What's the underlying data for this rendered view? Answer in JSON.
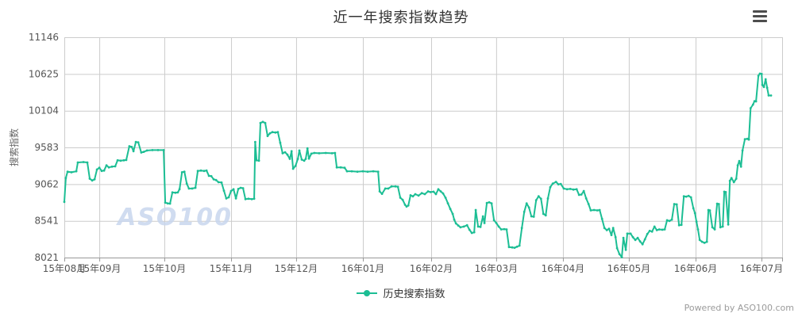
{
  "header": {
    "title": "近一年搜索指数趋势"
  },
  "footer": {
    "powered_by": "Powered by ASO100.com"
  },
  "watermark": "ASO100",
  "colors": {
    "line": "#1cbe94",
    "grid": "#cccccc",
    "axis": "#999999",
    "label": "#555555",
    "axis_name": "#666666",
    "title": "#333333",
    "watermark": "#c8d6ee",
    "menu": "#4d4d4d"
  },
  "chart_data": {
    "type": "line",
    "title": "近一年搜索指数趋势",
    "xlabel": "",
    "ylabel": "搜索指数",
    "ylim": [
      8021,
      11146
    ],
    "y_ticks": [
      11146,
      10625,
      10104,
      9583,
      9062,
      8541,
      8021
    ],
    "grid": true,
    "legend_position": "bottom",
    "x_ticks": [
      {
        "label": "15年08月",
        "day": 0
      },
      {
        "label": "15年09月",
        "day": 16.1
      },
      {
        "label": "15年10月",
        "day": 46.0
      },
      {
        "label": "15年11月",
        "day": 76.7
      },
      {
        "label": "15年12月",
        "day": 106.6
      },
      {
        "label": "16年01月",
        "day": 137.3
      },
      {
        "label": "16年02月",
        "day": 168.7
      },
      {
        "label": "16年03月",
        "day": 198.6
      },
      {
        "label": "16年04月",
        "day": 229.3
      },
      {
        "label": "16年05月",
        "day": 259.6
      },
      {
        "label": "16年06月",
        "day": 290.3
      },
      {
        "label": "16年07月",
        "day": 320.6
      }
    ],
    "total_days": 325,
    "series": [
      {
        "name": "历史搜索指数",
        "points": [
          [
            0,
            8810
          ],
          [
            0.7,
            9150
          ],
          [
            1.5,
            9240
          ],
          [
            3.3,
            9230
          ],
          [
            5.5,
            9245
          ],
          [
            6.2,
            9370
          ],
          [
            8.8,
            9375
          ],
          [
            10.6,
            9370
          ],
          [
            11.7,
            9140
          ],
          [
            12.8,
            9115
          ],
          [
            13.9,
            9130
          ],
          [
            15,
            9270
          ],
          [
            16.1,
            9295
          ],
          [
            17.2,
            9250
          ],
          [
            18.3,
            9255
          ],
          [
            19.4,
            9330
          ],
          [
            20.5,
            9300
          ],
          [
            21.9,
            9310
          ],
          [
            23.4,
            9315
          ],
          [
            24.5,
            9400
          ],
          [
            25.9,
            9395
          ],
          [
            27.4,
            9400
          ],
          [
            28.5,
            9405
          ],
          [
            29.9,
            9600
          ],
          [
            31,
            9590
          ],
          [
            31.8,
            9530
          ],
          [
            32.9,
            9660
          ],
          [
            34,
            9655
          ],
          [
            35.4,
            9510
          ],
          [
            36.5,
            9520
          ],
          [
            38,
            9540
          ],
          [
            40.5,
            9545
          ],
          [
            43.1,
            9545
          ],
          [
            45.7,
            9545
          ],
          [
            46.4,
            8800
          ],
          [
            47.5,
            8790
          ],
          [
            48.6,
            8785
          ],
          [
            49.7,
            8945
          ],
          [
            51.1,
            8940
          ],
          [
            52.2,
            8945
          ],
          [
            53,
            8990
          ],
          [
            54.1,
            9230
          ],
          [
            55.2,
            9240
          ],
          [
            56.3,
            9070
          ],
          [
            57.3,
            9000
          ],
          [
            58.8,
            9000
          ],
          [
            60.3,
            9010
          ],
          [
            61.4,
            9250
          ],
          [
            62.8,
            9255
          ],
          [
            64.3,
            9250
          ],
          [
            65.4,
            9255
          ],
          [
            66.5,
            9180
          ],
          [
            67.6,
            9175
          ],
          [
            68.7,
            9130
          ],
          [
            69.8,
            9120
          ],
          [
            70.9,
            9090
          ],
          [
            72.3,
            9085
          ],
          [
            73.4,
            8970
          ],
          [
            74.5,
            8860
          ],
          [
            75.6,
            8875
          ],
          [
            76.7,
            8965
          ],
          [
            77.8,
            8990
          ],
          [
            78.9,
            8860
          ],
          [
            80,
            8995
          ],
          [
            81.1,
            9010
          ],
          [
            82.2,
            9005
          ],
          [
            83.3,
            8850
          ],
          [
            84.7,
            8855
          ],
          [
            86.2,
            8850
          ],
          [
            87.3,
            8855
          ],
          [
            87.8,
            9660
          ],
          [
            88.4,
            9400
          ],
          [
            89.5,
            9395
          ],
          [
            90.2,
            9930
          ],
          [
            91.3,
            9945
          ],
          [
            92.4,
            9930
          ],
          [
            93.5,
            9745
          ],
          [
            94.6,
            9785
          ],
          [
            95.7,
            9800
          ],
          [
            97.1,
            9795
          ],
          [
            98.2,
            9800
          ],
          [
            99.3,
            9650
          ],
          [
            100.4,
            9500
          ],
          [
            101.5,
            9515
          ],
          [
            102.6,
            9480
          ],
          [
            103.7,
            9420
          ],
          [
            104.5,
            9530
          ],
          [
            105.2,
            9280
          ],
          [
            106.3,
            9320
          ],
          [
            107.4,
            9420
          ],
          [
            108.1,
            9540
          ],
          [
            109.2,
            9410
          ],
          [
            110.3,
            9395
          ],
          [
            111,
            9420
          ],
          [
            111.8,
            9570
          ],
          [
            112.5,
            9425
          ],
          [
            113.6,
            9495
          ],
          [
            115,
            9505
          ],
          [
            117.2,
            9500
          ],
          [
            120.2,
            9505
          ],
          [
            123.1,
            9500
          ],
          [
            124.5,
            9505
          ],
          [
            125.3,
            9300
          ],
          [
            127.1,
            9300
          ],
          [
            128.9,
            9295
          ],
          [
            130,
            9245
          ],
          [
            132.2,
            9245
          ],
          [
            134.8,
            9240
          ],
          [
            137.3,
            9245
          ],
          [
            139.5,
            9240
          ],
          [
            142.1,
            9245
          ],
          [
            144.3,
            9240
          ],
          [
            145,
            8960
          ],
          [
            146.1,
            8925
          ],
          [
            147.6,
            9000
          ],
          [
            149,
            9000
          ],
          [
            150.5,
            9030
          ],
          [
            152.3,
            9030
          ],
          [
            153.4,
            9025
          ],
          [
            154.5,
            8870
          ],
          [
            155.6,
            8840
          ],
          [
            156.7,
            8770
          ],
          [
            157.4,
            8745
          ],
          [
            158.2,
            8760
          ],
          [
            159.2,
            8905
          ],
          [
            160.3,
            8890
          ],
          [
            161.4,
            8920
          ],
          [
            162.9,
            8900
          ],
          [
            164.4,
            8935
          ],
          [
            165.8,
            8920
          ],
          [
            167.3,
            8960
          ],
          [
            168.4,
            8950
          ],
          [
            169.8,
            8955
          ],
          [
            170.9,
            8920
          ],
          [
            172,
            8990
          ],
          [
            173.1,
            8960
          ],
          [
            174.2,
            8930
          ],
          [
            175.3,
            8870
          ],
          [
            176.4,
            8790
          ],
          [
            177.5,
            8710
          ],
          [
            178.6,
            8640
          ],
          [
            179.3,
            8560
          ],
          [
            180.1,
            8505
          ],
          [
            181.2,
            8475
          ],
          [
            182.2,
            8450
          ],
          [
            183.7,
            8460
          ],
          [
            185.2,
            8480
          ],
          [
            186.3,
            8415
          ],
          [
            187.4,
            8370
          ],
          [
            188.5,
            8380
          ],
          [
            189.2,
            8695
          ],
          [
            190.3,
            8460
          ],
          [
            191.4,
            8455
          ],
          [
            192.5,
            8605
          ],
          [
            193.2,
            8510
          ],
          [
            194.3,
            8795
          ],
          [
            195.4,
            8805
          ],
          [
            196.5,
            8790
          ],
          [
            197.6,
            8550
          ],
          [
            198.7,
            8510
          ],
          [
            199.8,
            8460
          ],
          [
            200.9,
            8420
          ],
          [
            202.3,
            8425
          ],
          [
            203.4,
            8420
          ],
          [
            204.5,
            8170
          ],
          [
            206,
            8165
          ],
          [
            207.1,
            8160
          ],
          [
            208.2,
            8175
          ],
          [
            209.3,
            8190
          ],
          [
            210.4,
            8440
          ],
          [
            211.5,
            8670
          ],
          [
            212.6,
            8790
          ],
          [
            213.7,
            8730
          ],
          [
            214.8,
            8605
          ],
          [
            215.9,
            8600
          ],
          [
            217,
            8835
          ],
          [
            218.1,
            8890
          ],
          [
            219.2,
            8855
          ],
          [
            220.3,
            8640
          ],
          [
            221.4,
            8620
          ],
          [
            222.4,
            8860
          ],
          [
            223.5,
            9020
          ],
          [
            224.6,
            9070
          ],
          [
            226.1,
            9095
          ],
          [
            227.2,
            9060
          ],
          [
            228.3,
            9065
          ],
          [
            229.7,
            9000
          ],
          [
            231.2,
            8990
          ],
          [
            232.7,
            8995
          ],
          [
            234.1,
            8985
          ],
          [
            235.6,
            8990
          ],
          [
            236.7,
            8910
          ],
          [
            237.8,
            8915
          ],
          [
            238.9,
            8965
          ],
          [
            240,
            8860
          ],
          [
            241.1,
            8780
          ],
          [
            242.1,
            8690
          ],
          [
            243.6,
            8695
          ],
          [
            245.1,
            8690
          ],
          [
            246.2,
            8695
          ],
          [
            247.3,
            8570
          ],
          [
            248.4,
            8440
          ],
          [
            249.5,
            8410
          ],
          [
            250.5,
            8430
          ],
          [
            251.6,
            8340
          ],
          [
            252.4,
            8440
          ],
          [
            253.5,
            8310
          ],
          [
            254.2,
            8155
          ],
          [
            255.3,
            8070
          ],
          [
            256.4,
            8025
          ],
          [
            257.1,
            8300
          ],
          [
            258.2,
            8130
          ],
          [
            258.9,
            8360
          ],
          [
            260.4,
            8360
          ],
          [
            261.5,
            8310
          ],
          [
            262.6,
            8270
          ],
          [
            263.7,
            8300
          ],
          [
            264.8,
            8250
          ],
          [
            265.9,
            8210
          ],
          [
            267,
            8280
          ],
          [
            268.1,
            8355
          ],
          [
            269.2,
            8400
          ],
          [
            270.3,
            8390
          ],
          [
            271.4,
            8460
          ],
          [
            272.5,
            8410
          ],
          [
            273.6,
            8420
          ],
          [
            275,
            8415
          ],
          [
            276.1,
            8420
          ],
          [
            277.2,
            8550
          ],
          [
            278.3,
            8540
          ],
          [
            279.4,
            8560
          ],
          [
            280.5,
            8780
          ],
          [
            281.6,
            8775
          ],
          [
            282.7,
            8480
          ],
          [
            283.8,
            8485
          ],
          [
            284.9,
            8890
          ],
          [
            286,
            8885
          ],
          [
            287.1,
            8895
          ],
          [
            288.2,
            8875
          ],
          [
            289.3,
            8720
          ],
          [
            290,
            8650
          ],
          [
            290.7,
            8530
          ],
          [
            291.4,
            8420
          ],
          [
            292.2,
            8270
          ],
          [
            293.3,
            8245
          ],
          [
            294.4,
            8230
          ],
          [
            295.5,
            8245
          ],
          [
            296.2,
            8695
          ],
          [
            296.9,
            8690
          ],
          [
            298,
            8450
          ],
          [
            299.1,
            8420
          ],
          [
            300.2,
            8785
          ],
          [
            301,
            8780
          ],
          [
            301.7,
            8450
          ],
          [
            302.8,
            8460
          ],
          [
            303.5,
            8955
          ],
          [
            304.2,
            8950
          ],
          [
            305.3,
            8490
          ],
          [
            306.1,
            9110
          ],
          [
            306.8,
            9150
          ],
          [
            307.9,
            9090
          ],
          [
            309,
            9140
          ],
          [
            309.7,
            9330
          ],
          [
            310.4,
            9390
          ],
          [
            311.2,
            9310
          ],
          [
            311.9,
            9540
          ],
          [
            313,
            9700
          ],
          [
            314.1,
            9705
          ],
          [
            314.8,
            9695
          ],
          [
            315.6,
            10140
          ],
          [
            316.7,
            10190
          ],
          [
            317.4,
            10240
          ],
          [
            318.1,
            10235
          ],
          [
            319.2,
            10600
          ],
          [
            319.9,
            10630
          ],
          [
            320.7,
            10625
          ],
          [
            321,
            10470
          ],
          [
            321.7,
            10440
          ],
          [
            322.5,
            10550
          ],
          [
            323.2,
            10430
          ],
          [
            323.9,
            10320
          ],
          [
            325,
            10320
          ]
        ]
      }
    ]
  }
}
